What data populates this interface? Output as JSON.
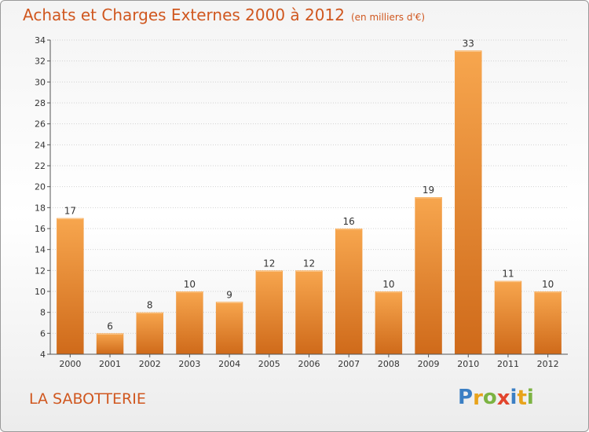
{
  "header": {
    "title": "Achats et Charges Externes 2000 à 2012",
    "subtitle": "(en milliers d'€)"
  },
  "footer": {
    "commune": "LA SABOTTERIE",
    "logo_letters": [
      {
        "char": "P",
        "color": "#3b7fc4"
      },
      {
        "char": "r",
        "color": "#e8a31b"
      },
      {
        "char": "o",
        "color": "#7cb342"
      },
      {
        "char": "x",
        "color": "#e2452d"
      },
      {
        "char": "i",
        "color": "#3b7fc4"
      },
      {
        "char": "t",
        "color": "#e8a31b"
      },
      {
        "char": "i",
        "color": "#7cb342"
      }
    ]
  },
  "chart_data": {
    "type": "bar",
    "title": "Achats et Charges Externes 2000 à 2012",
    "unit": "(en milliers d'€)",
    "categories": [
      "2000",
      "2001",
      "2002",
      "2003",
      "2004",
      "2005",
      "2006",
      "2007",
      "2008",
      "2009",
      "2010",
      "2011",
      "2012"
    ],
    "values": [
      17,
      6,
      8,
      10,
      9,
      12,
      12,
      16,
      10,
      19,
      33,
      11,
      10
    ],
    "ylim": [
      4,
      34
    ],
    "yticks": [
      4,
      6,
      8,
      10,
      12,
      14,
      16,
      18,
      20,
      22,
      24,
      26,
      28,
      30,
      32,
      34
    ],
    "grid": true,
    "colors": {
      "bar_light": "#f7a64e",
      "bar_dark": "#cf6a1a",
      "grid": "#d2d2d2",
      "axis": "#555555",
      "text": "#333333"
    }
  }
}
